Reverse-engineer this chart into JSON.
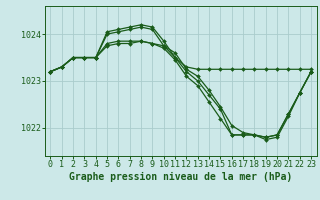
{
  "background_color": "#cce8e8",
  "grid_color": "#aacccc",
  "line_color": "#1a5c1a",
  "marker_color": "#1a5c1a",
  "xlabel": "Graphe pression niveau de la mer (hPa)",
  "xlabel_fontsize": 7,
  "tick_fontsize": 6,
  "yticks": [
    1022,
    1023,
    1024
  ],
  "xlim": [
    -0.5,
    23.5
  ],
  "ylim": [
    1021.4,
    1024.6
  ],
  "series": [
    {
      "x": [
        0,
        1,
        2,
        3,
        4,
        5,
        6,
        7,
        8,
        9,
        10,
        11,
        12,
        13,
        14,
        15,
        16,
        17,
        18,
        19,
        20,
        21,
        22,
        23
      ],
      "y": [
        1023.2,
        1023.3,
        1023.5,
        1023.5,
        1023.5,
        1024.05,
        1024.1,
        1024.15,
        1024.2,
        1024.15,
        1023.85,
        1023.5,
        1023.3,
        1023.25,
        1023.25,
        1023.25,
        1023.25,
        1023.25,
        1023.25,
        1023.25,
        1023.25,
        1023.25,
        1023.25,
        1023.25
      ]
    },
    {
      "x": [
        0,
        1,
        2,
        3,
        4,
        5,
        6,
        7,
        8,
        9,
        10,
        11,
        12,
        13,
        14,
        15,
        16,
        17,
        18,
        19,
        20,
        21,
        22,
        23
      ],
      "y": [
        1023.2,
        1023.3,
        1023.5,
        1023.5,
        1023.5,
        1023.8,
        1023.85,
        1023.85,
        1023.85,
        1023.8,
        1023.75,
        1023.5,
        1023.2,
        1023.0,
        1022.7,
        1022.4,
        1021.85,
        1021.85,
        1021.85,
        1021.8,
        1021.85,
        1022.3,
        1022.75,
        1023.2
      ]
    },
    {
      "x": [
        0,
        1,
        2,
        3,
        4,
        5,
        6,
        7,
        8,
        9,
        10,
        11,
        12,
        13,
        14,
        15,
        16,
        17,
        18,
        19,
        20,
        21,
        22,
        23
      ],
      "y": [
        1023.2,
        1023.3,
        1023.5,
        1023.5,
        1023.5,
        1024.0,
        1024.05,
        1024.1,
        1024.15,
        1024.1,
        1023.75,
        1023.6,
        1023.25,
        1023.1,
        1022.8,
        1022.45,
        1022.05,
        1021.9,
        1021.85,
        1021.75,
        1021.8,
        1022.25,
        1022.75,
        1023.2
      ]
    },
    {
      "x": [
        0,
        1,
        2,
        3,
        4,
        5,
        6,
        7,
        8,
        9,
        10,
        11,
        12,
        13,
        14,
        15,
        16,
        17,
        18,
        19,
        20,
        21,
        22,
        23
      ],
      "y": [
        1023.2,
        1023.3,
        1023.5,
        1023.5,
        1023.5,
        1023.75,
        1023.8,
        1023.8,
        1023.85,
        1023.8,
        1023.7,
        1023.45,
        1023.1,
        1022.9,
        1022.55,
        1022.2,
        1021.85,
        1021.85,
        1021.85,
        1021.8,
        1021.85,
        1022.3,
        1022.75,
        1023.2
      ]
    }
  ]
}
